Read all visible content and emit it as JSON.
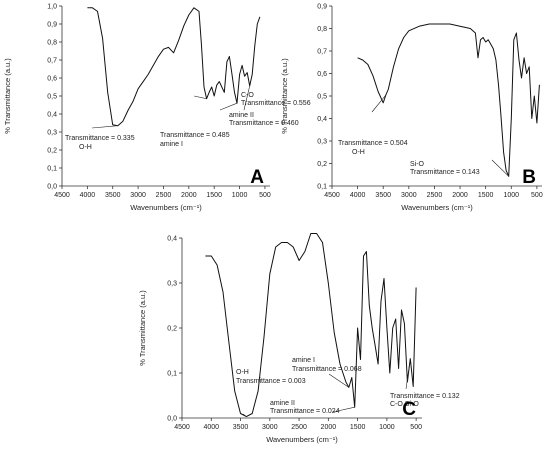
{
  "chart_data": [
    {
      "type": "line",
      "panel_label": "A",
      "xlabel": "Wavenumbers (cm⁻¹)",
      "ylabel": "% Transmittance (a.u.)",
      "xlim": [
        4500,
        400
      ],
      "ylim": [
        0.0,
        1.0
      ],
      "x_axis_reversed": true,
      "xticks": [
        "4500",
        "4000",
        "3500",
        "3000",
        "2500",
        "2000",
        "1500",
        "1000",
        "500"
      ],
      "xtick_values": [
        4500,
        4000,
        3500,
        3000,
        2500,
        2000,
        1500,
        1000,
        500
      ],
      "yticks": [
        "0,0",
        "0,1",
        "0,2",
        "0,3",
        "0,4",
        "0,5",
        "0,6",
        "0,7",
        "0,8",
        "0,9",
        "1,0"
      ],
      "ytick_values": [
        0.0,
        0.1,
        0.2,
        0.3,
        0.4,
        0.5,
        0.6,
        0.7,
        0.8,
        0.9,
        1.0
      ],
      "series": [
        {
          "x": [
            4000,
            3900,
            3800,
            3700,
            3600,
            3500,
            3400,
            3300,
            3200,
            3100,
            3000,
            2900,
            2800,
            2700,
            2600,
            2500,
            2400,
            2300,
            2200,
            2100,
            2000,
            1900,
            1800,
            1750,
            1700,
            1650,
            1600,
            1550,
            1500,
            1450,
            1400,
            1350,
            1300,
            1250,
            1200,
            1150,
            1100,
            1050,
            1000,
            950,
            900,
            850,
            800,
            750,
            700,
            650,
            600
          ],
          "y": [
            0.99,
            0.99,
            0.97,
            0.82,
            0.52,
            0.34,
            0.335,
            0.36,
            0.42,
            0.47,
            0.54,
            0.58,
            0.62,
            0.67,
            0.72,
            0.76,
            0.77,
            0.74,
            0.81,
            0.89,
            0.95,
            0.99,
            0.97,
            0.78,
            0.55,
            0.485,
            0.52,
            0.55,
            0.5,
            0.56,
            0.58,
            0.55,
            0.52,
            0.69,
            0.72,
            0.62,
            0.52,
            0.46,
            0.62,
            0.67,
            0.61,
            0.63,
            0.556,
            0.62,
            0.78,
            0.9,
            0.94
          ]
        }
      ],
      "annotations": [
        {
          "text": "Transmittance = 0.335",
          "text2": "O-H",
          "x": 3400,
          "y": 0.335
        },
        {
          "text": "Transmittance = 0.485",
          "text2": "amine I",
          "x": 1650,
          "y": 0.485
        },
        {
          "text": "amine II",
          "text2": "Transmittance = 0.460",
          "x": 1050,
          "y": 0.46
        },
        {
          "text": "C-O",
          "text2": "Transmittance = 0.556",
          "x": 800,
          "y": 0.556
        }
      ]
    },
    {
      "type": "line",
      "panel_label": "B",
      "xlabel": "Wavenumbers (cm⁻¹)",
      "ylabel": "% Transmittance (a.u.)",
      "xlim": [
        4500,
        400
      ],
      "ylim": [
        0.1,
        0.9
      ],
      "x_axis_reversed": true,
      "xticks": [
        "4500",
        "4000",
        "3500",
        "3000",
        "2500",
        "2000",
        "1500",
        "1000",
        "500"
      ],
      "xtick_values": [
        4500,
        4000,
        3500,
        3000,
        2500,
        2000,
        1500,
        1000,
        500
      ],
      "yticks": [
        "0,1",
        "0,2",
        "0,3",
        "0,4",
        "0,5",
        "0,6",
        "0,7",
        "0,8",
        "0,9"
      ],
      "ytick_values": [
        0.1,
        0.2,
        0.3,
        0.4,
        0.5,
        0.6,
        0.7,
        0.8,
        0.9
      ],
      "series": [
        {
          "x": [
            4000,
            3900,
            3800,
            3700,
            3600,
            3500,
            3450,
            3400,
            3300,
            3200,
            3100,
            3000,
            2800,
            2600,
            2400,
            2200,
            2000,
            1800,
            1700,
            1650,
            1600,
            1550,
            1500,
            1450,
            1400,
            1350,
            1300,
            1250,
            1200,
            1150,
            1100,
            1050,
            1000,
            950,
            900,
            850,
            800,
            750,
            700,
            650,
            600,
            550,
            500,
            450
          ],
          "y": [
            0.67,
            0.66,
            0.64,
            0.59,
            0.52,
            0.47,
            0.504,
            0.53,
            0.63,
            0.71,
            0.76,
            0.79,
            0.81,
            0.82,
            0.82,
            0.82,
            0.81,
            0.8,
            0.78,
            0.67,
            0.75,
            0.76,
            0.74,
            0.75,
            0.73,
            0.71,
            0.66,
            0.55,
            0.41,
            0.25,
            0.17,
            0.143,
            0.4,
            0.75,
            0.78,
            0.66,
            0.58,
            0.67,
            0.6,
            0.63,
            0.4,
            0.5,
            0.38,
            0.55
          ]
        }
      ],
      "annotations": [
        {
          "text": "Transmittance = 0.504",
          "text2": "O-H",
          "x": 3450,
          "y": 0.504
        },
        {
          "text": "Si-O",
          "text2": "Transmittance = 0.143",
          "x": 1050,
          "y": 0.143
        }
      ]
    },
    {
      "type": "line",
      "panel_label": "C",
      "xlabel": "Wavenumbers (cm⁻¹)",
      "ylabel": "% Transmittance (a.u.)",
      "xlim": [
        4500,
        400
      ],
      "ylim": [
        0.0,
        0.4
      ],
      "x_axis_reversed": true,
      "xticks": [
        "4500",
        "4000",
        "3500",
        "3000",
        "2500",
        "2000",
        "1500",
        "1000",
        "500"
      ],
      "xtick_values": [
        4500,
        4000,
        3500,
        3000,
        2500,
        2000,
        1500,
        1000,
        500
      ],
      "yticks": [
        "0,0",
        "0,1",
        "0,2",
        "0,3",
        "0,4"
      ],
      "ytick_values": [
        0.0,
        0.1,
        0.2,
        0.3,
        0.4
      ],
      "series": [
        {
          "x": [
            4100,
            4000,
            3900,
            3800,
            3700,
            3600,
            3500,
            3400,
            3300,
            3200,
            3100,
            3000,
            2900,
            2800,
            2700,
            2600,
            2500,
            2400,
            2300,
            2200,
            2100,
            2000,
            1900,
            1800,
            1700,
            1650,
            1600,
            1550,
            1500,
            1450,
            1400,
            1350,
            1300,
            1250,
            1200,
            1150,
            1100,
            1050,
            1000,
            950,
            900,
            850,
            800,
            750,
            700,
            650,
            600,
            550,
            500
          ],
          "y": [
            0.36,
            0.36,
            0.34,
            0.28,
            0.17,
            0.06,
            0.01,
            0.003,
            0.01,
            0.06,
            0.18,
            0.32,
            0.38,
            0.39,
            0.39,
            0.38,
            0.35,
            0.37,
            0.41,
            0.41,
            0.39,
            0.3,
            0.19,
            0.12,
            0.08,
            0.068,
            0.09,
            0.024,
            0.2,
            0.13,
            0.36,
            0.37,
            0.25,
            0.2,
            0.16,
            0.12,
            0.26,
            0.31,
            0.2,
            0.1,
            0.2,
            0.22,
            0.11,
            0.24,
            0.21,
            0.08,
            0.132,
            0.07,
            0.29
          ]
        }
      ],
      "annotations": [
        {
          "text": "O-H",
          "text2": "Transmittance = 0.003",
          "x": 3400,
          "y": 0.003
        },
        {
          "text": "amine I",
          "text2": "Transmittance = 0.068",
          "x": 1650,
          "y": 0.068
        },
        {
          "text": "amine II",
          "text2": "Transmittance = 0.024",
          "x": 1550,
          "y": 0.024
        },
        {
          "text": "Transmittance = 0.132",
          "text2": "C-O  Si-O",
          "x": 600,
          "y": 0.132
        }
      ]
    }
  ]
}
